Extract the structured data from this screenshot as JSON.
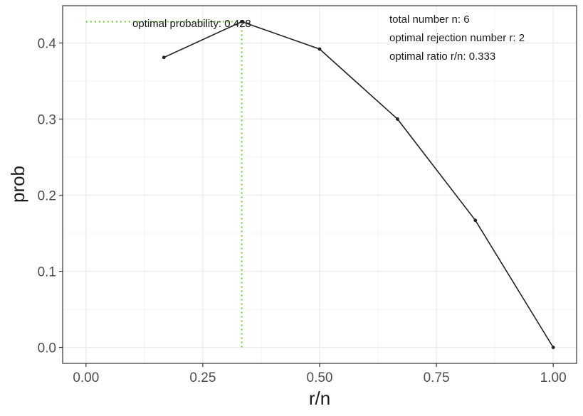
{
  "chart_data": {
    "type": "line",
    "x": [
      0.1667,
      0.3333,
      0.5,
      0.6667,
      0.8333,
      1.0
    ],
    "series": [
      {
        "values": [
          0.381,
          0.428,
          0.392,
          0.3,
          0.167,
          0.0
        ]
      }
    ],
    "xlabel": "r/n",
    "ylabel": "prob",
    "xlim": [
      -0.05,
      1.05
    ],
    "ylim": [
      -0.021,
      0.449
    ],
    "x_ticks": [
      0.0,
      0.25,
      0.5,
      0.75,
      1.0
    ],
    "x_tick_labels": [
      "0.00",
      "0.25",
      "0.50",
      "0.75",
      "1.00"
    ],
    "y_ticks": [
      0.0,
      0.1,
      0.2,
      0.3,
      0.4
    ],
    "y_tick_labels": [
      "0.0",
      "0.1",
      "0.2",
      "0.3",
      "0.4"
    ],
    "grid": true,
    "optimal_point": {
      "x": 0.3333,
      "y": 0.428
    },
    "annotations": {
      "optimal_probability": "optimal probability:  0.428",
      "total_number": "total number n: 6",
      "optimal_rejection": "optimal rejection number r: 2",
      "optimal_ratio": "optimal ratio r/n: 0.333"
    },
    "colors": {
      "line": "#222222",
      "guide": "#66cc33",
      "grid_major": "#ebebeb",
      "grid_minor": "#f5f5f5",
      "panel_border": "#333333"
    }
  }
}
